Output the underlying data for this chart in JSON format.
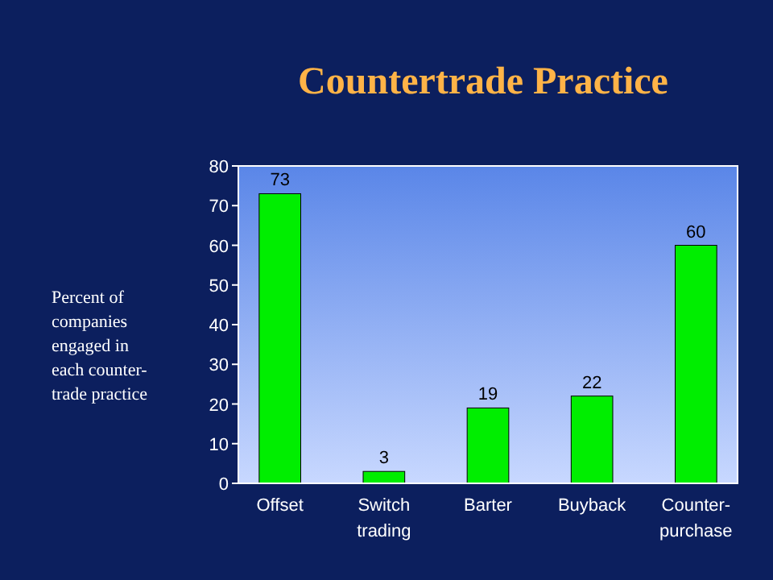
{
  "chart_data": {
    "type": "bar",
    "title": "Countertrade Practice",
    "ylabel": "Percent of companies engaged in each counter-trade practice",
    "categories": [
      "Offset",
      "Switch trading",
      "Barter",
      "Buyback",
      "Counter-purchase"
    ],
    "values": [
      73,
      3,
      19,
      22,
      60
    ],
    "color": "#00ee00",
    "ylim": [
      0,
      80
    ],
    "yticks": [
      0,
      10,
      20,
      30,
      40,
      50,
      60,
      70,
      80
    ],
    "grid": false,
    "data_labels": true
  }
}
